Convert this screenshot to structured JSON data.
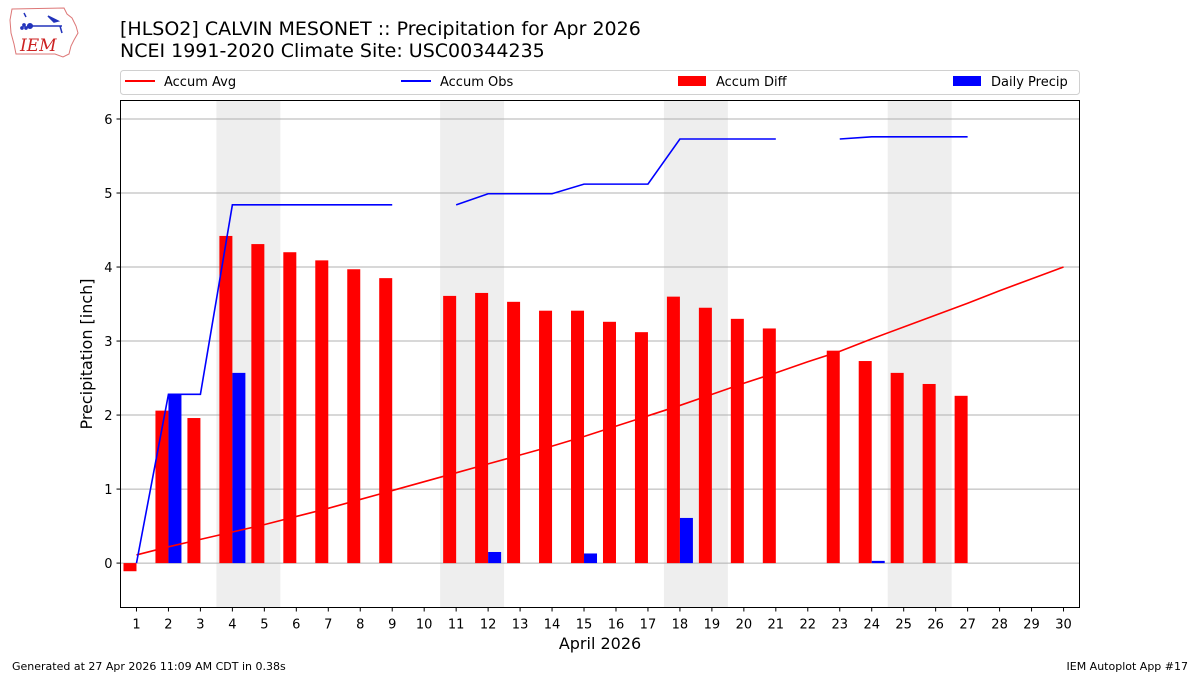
{
  "header": {
    "title_line1": "[HLSO2] CALVIN MESONET :: Precipitation for Apr 2026",
    "title_line2": "NCEI 1991-2020 Climate Site: USC00344235",
    "logo_text": "IEM"
  },
  "footer": {
    "generated": "Generated at 27 Apr 2026 11:09 AM CDT in 0.38s",
    "app": "IEM Autoplot App #17"
  },
  "legend": {
    "items": [
      {
        "label": "Accum Avg",
        "kind": "line",
        "color": "#ff0000"
      },
      {
        "label": "Accum Obs",
        "kind": "line",
        "color": "#0000ff"
      },
      {
        "label": "Accum Diff",
        "kind": "bar",
        "color": "#ff0000"
      },
      {
        "label": "Daily Precip",
        "kind": "bar",
        "color": "#0000ff"
      }
    ]
  },
  "chart_data": {
    "type": "bar",
    "xlabel": "April 2026",
    "ylabel": "Precipitation [inch]",
    "xlim": [
      0.5,
      30.5
    ],
    "ylim": [
      -0.6,
      6.25
    ],
    "yticks": [
      0,
      1,
      2,
      3,
      4,
      5,
      6
    ],
    "grid": "horizontal",
    "weekend_shading": [
      [
        3.5,
        5.5
      ],
      [
        10.5,
        12.5
      ],
      [
        17.5,
        19.5
      ],
      [
        24.5,
        26.5
      ]
    ],
    "days": [
      1,
      2,
      3,
      4,
      5,
      6,
      7,
      8,
      9,
      10,
      11,
      12,
      13,
      14,
      15,
      16,
      17,
      18,
      19,
      20,
      21,
      22,
      23,
      24,
      25,
      26,
      27,
      28,
      29,
      30
    ],
    "colors": {
      "avg": "#ff0000",
      "obs": "#0000ff",
      "diff": "#ff0000",
      "daily": "#0000ff",
      "shade": "#eeeeee",
      "grid": "#b0b0b0"
    },
    "series": [
      {
        "name": "Accum Diff",
        "values": [
          -0.11,
          2.06,
          1.96,
          4.42,
          4.31,
          4.2,
          4.09,
          3.97,
          3.85,
          null,
          3.61,
          3.65,
          3.53,
          3.41,
          3.41,
          3.26,
          3.12,
          3.6,
          3.45,
          3.3,
          3.17,
          null,
          2.87,
          2.73,
          2.57,
          2.42,
          2.26,
          null,
          null,
          null
        ]
      },
      {
        "name": "Daily Precip",
        "values": [
          0,
          2.28,
          0,
          2.57,
          0,
          0,
          0,
          0,
          0,
          null,
          0,
          0.15,
          0,
          0,
          0.13,
          0,
          0,
          0.61,
          0,
          0,
          0,
          null,
          0,
          0.03,
          0,
          0,
          0,
          null,
          null,
          null
        ]
      },
      {
        "name": "Accum Avg",
        "values": [
          0.11,
          0.22,
          0.32,
          0.42,
          0.52,
          0.63,
          0.74,
          0.86,
          0.98,
          1.1,
          1.22,
          1.34,
          1.46,
          1.58,
          1.71,
          1.85,
          1.99,
          2.13,
          2.28,
          2.43,
          2.57,
          2.72,
          2.86,
          3.03,
          3.19,
          3.35,
          3.51,
          3.68,
          3.84,
          4.0
        ]
      },
      {
        "name": "Accum Obs",
        "values": [
          0.0,
          2.28,
          2.28,
          4.84,
          4.84,
          4.84,
          4.84,
          4.84,
          4.84,
          null,
          4.84,
          4.99,
          4.99,
          4.99,
          5.12,
          5.12,
          5.12,
          5.73,
          5.73,
          5.73,
          5.73,
          null,
          5.73,
          5.76,
          5.76,
          5.76,
          5.76,
          null,
          null,
          null
        ]
      }
    ]
  }
}
